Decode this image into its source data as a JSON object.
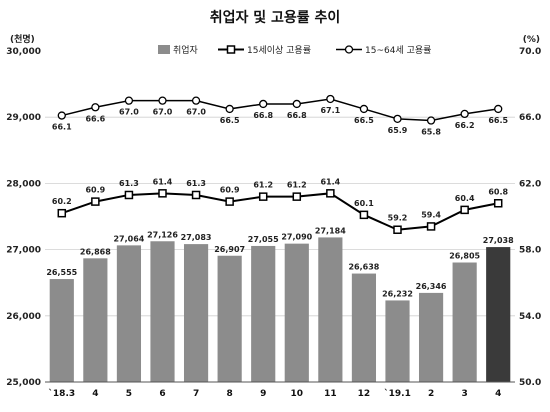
{
  "chart_data": {
    "type": "bar",
    "title": "취업자 및 고용률 추이",
    "left_unit": "(천명)",
    "right_unit": "(%)",
    "categories": [
      "`18.3",
      "4",
      "5",
      "6",
      "7",
      "8",
      "9",
      "10",
      "11",
      "12",
      "`19.1",
      "2",
      "3",
      "4"
    ],
    "left_axis": {
      "min": 25000,
      "max": 30000,
      "ticks": [
        "25,000",
        "26,000",
        "27,000",
        "28,000",
        "29,000",
        "30,000"
      ],
      "tick_values": [
        25000,
        26000,
        27000,
        28000,
        29000,
        30000
      ]
    },
    "right_axis": {
      "min": 50.0,
      "max": 70.0,
      "ticks": [
        "50.0",
        "54.0",
        "58.0",
        "62.0",
        "66.0",
        "70.0"
      ],
      "tick_values": [
        50,
        54,
        58,
        62,
        66,
        70
      ]
    },
    "grid": true,
    "legend_position": "top",
    "series": [
      {
        "name": "취업자",
        "kind": "bar",
        "axis": "left",
        "color": "#8c8c8c",
        "highlight_color": "#3a3a3a",
        "values": [
          26555,
          26868,
          27064,
          27126,
          27083,
          26907,
          27055,
          27090,
          27184,
          26638,
          26232,
          26346,
          26805,
          27038
        ],
        "labels": [
          "26,555",
          "26,868",
          "27,064",
          "27,126",
          "27,083",
          "26,907",
          "27,055",
          "27,090",
          "27,184",
          "26,638",
          "26,232",
          "26,346",
          "26,805",
          "27,038"
        ]
      },
      {
        "name": "15세이상 고용률",
        "kind": "line",
        "axis": "right",
        "marker": "square",
        "color": "#000000",
        "values": [
          60.2,
          60.9,
          61.3,
          61.4,
          61.3,
          60.9,
          61.2,
          61.2,
          61.4,
          60.1,
          59.2,
          59.4,
          60.4,
          60.8
        ],
        "labels": [
          "60.2",
          "60.9",
          "61.3",
          "61.4",
          "61.3",
          "60.9",
          "61.2",
          "61.2",
          "61.4",
          "60.1",
          "59.2",
          "59.4",
          "60.4",
          "60.8"
        ]
      },
      {
        "name": "15~64세 고용률",
        "kind": "line",
        "axis": "right",
        "marker": "circle",
        "color": "#000000",
        "values": [
          66.1,
          66.6,
          67.0,
          67.0,
          67.0,
          66.5,
          66.8,
          66.8,
          67.1,
          66.5,
          65.9,
          65.8,
          66.2,
          66.5
        ],
        "labels": [
          "66.1",
          "66.6",
          "67.0",
          "67.0",
          "67.0",
          "66.5",
          "66.8",
          "66.8",
          "67.1",
          "66.5",
          "65.9",
          "65.8",
          "66.2",
          "66.5"
        ]
      }
    ]
  }
}
